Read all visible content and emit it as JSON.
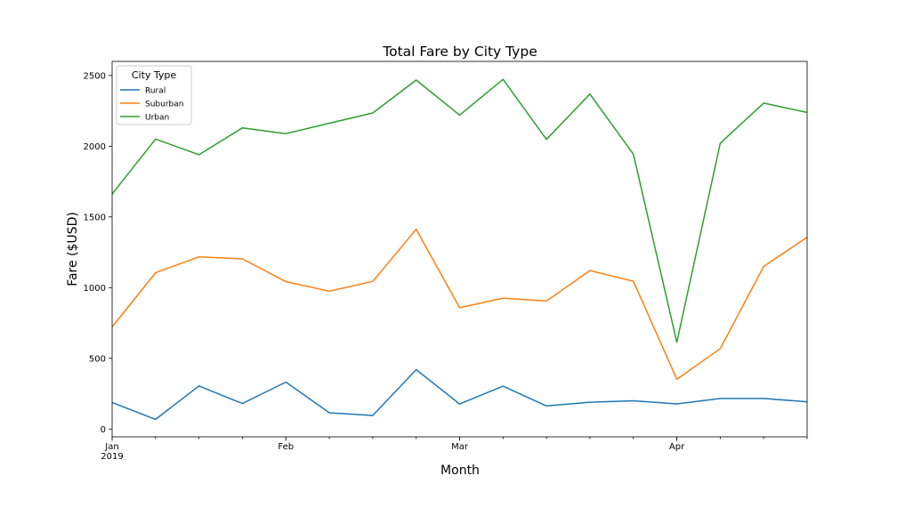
{
  "chart_data": {
    "type": "line",
    "title": "Total Fare by City Type",
    "xlabel": "Month",
    "ylabel": "Fare ($USD)",
    "x": [
      "2019-01-06",
      "2019-01-13",
      "2019-01-20",
      "2019-01-27",
      "2019-02-03",
      "2019-02-10",
      "2019-02-17",
      "2019-02-24",
      "2019-03-03",
      "2019-03-10",
      "2019-03-17",
      "2019-03-24",
      "2019-03-31",
      "2019-04-07",
      "2019-04-14",
      "2019-04-21",
      "2019-04-28"
    ],
    "x_tick_labels": [
      {
        "date": "2019-01-06",
        "label": "Jan",
        "sublabel": "2019"
      },
      {
        "date": "2019-02-03",
        "label": "Feb",
        "sublabel": ""
      },
      {
        "date": "2019-03-03",
        "label": "Mar",
        "sublabel": ""
      },
      {
        "date": "2019-04-07",
        "label": "Apr",
        "sublabel": ""
      }
    ],
    "xlim": [
      "2019-01-06",
      "2019-04-28"
    ],
    "y_ticks": [
      0,
      500,
      1000,
      1500,
      2000,
      2500
    ],
    "ylim": [
      -55,
      2600
    ],
    "grid": false,
    "legend": {
      "title": "City Type",
      "placement": "top-left"
    },
    "series": [
      {
        "name": "Rural",
        "color": "#1f77b4",
        "values": [
          188,
          68,
          305,
          180,
          332,
          115,
          96,
          420,
          177,
          303,
          163,
          190,
          200,
          178,
          216,
          216,
          193
        ]
      },
      {
        "name": "Suburban",
        "color": "#ff7f0e",
        "values": [
          722,
          1105,
          1218,
          1203,
          1042,
          975,
          1044,
          1413,
          858,
          926,
          905,
          1121,
          1045,
          352,
          569,
          1150,
          1357
        ]
      },
      {
        "name": "Urban",
        "color": "#2ca02c",
        "values": [
          1662,
          2051,
          1940,
          2130,
          2089,
          2163,
          2235,
          2468,
          2220,
          2473,
          2048,
          2369,
          1943,
          614,
          2022,
          2305,
          2239
        ]
      }
    ]
  }
}
